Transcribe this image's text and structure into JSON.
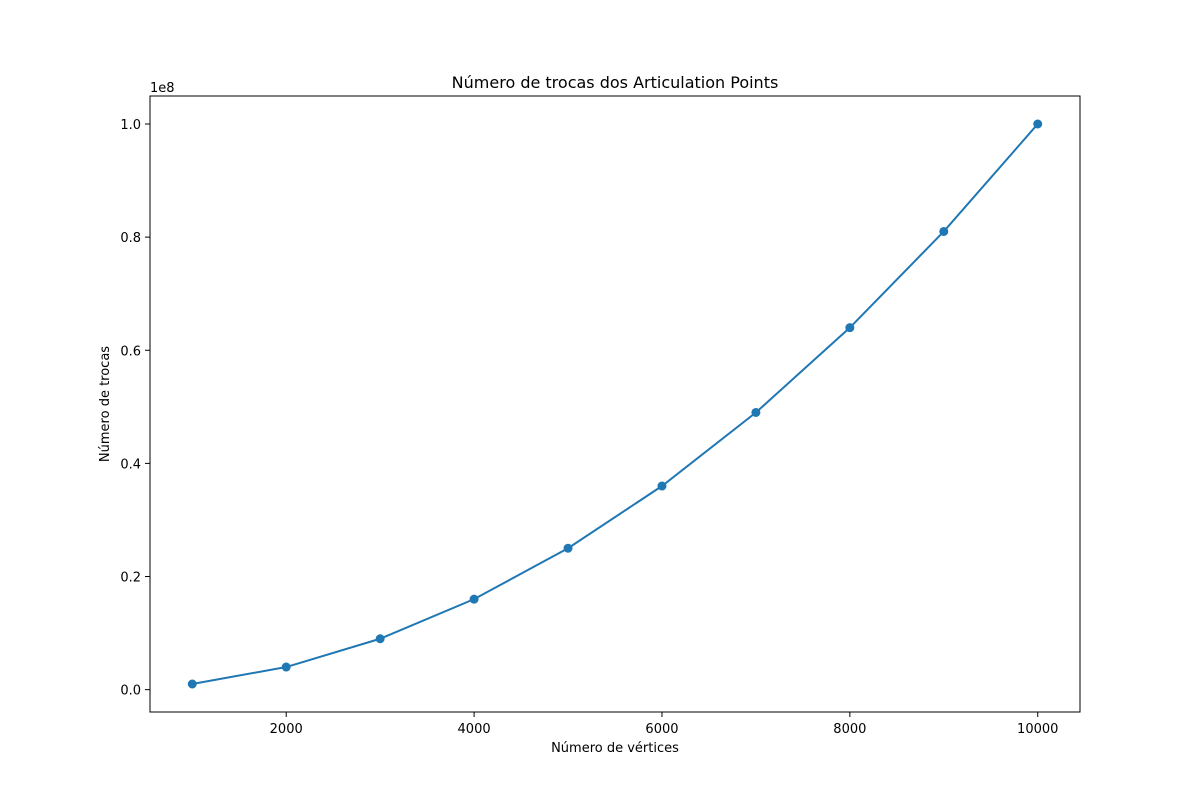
{
  "chart_data": {
    "type": "line",
    "title": "Número de trocas dos Articulation Points",
    "xlabel": "Número de vértices",
    "ylabel": "Número de trocas",
    "y_offset_label": "1e8",
    "x": [
      1000,
      2000,
      3000,
      4000,
      5000,
      6000,
      7000,
      8000,
      9000,
      10000
    ],
    "series": [
      {
        "values": [
          1000000,
          4000000,
          9000000,
          16000000,
          25000000,
          36000000,
          49000000,
          64000000,
          81000000,
          100000000
        ],
        "color": "#1f77b4",
        "marker": "circle"
      }
    ],
    "xlim": [
      550,
      10450
    ],
    "ylim": [
      -3950000,
      104950000
    ],
    "x_ticks": [
      2000,
      4000,
      6000,
      8000,
      10000
    ],
    "x_tick_labels": [
      "2000",
      "4000",
      "6000",
      "8000",
      "10000"
    ],
    "y_ticks": [
      0,
      20000000,
      40000000,
      60000000,
      80000000,
      100000000
    ],
    "y_tick_labels": [
      "0.0",
      "0.2",
      "0.4",
      "0.6",
      "0.8",
      "1.0"
    ],
    "grid": false,
    "legend": "none"
  }
}
